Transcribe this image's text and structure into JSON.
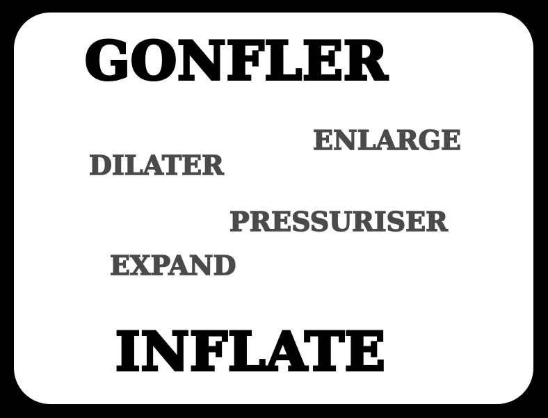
{
  "card": {
    "title_top": "GONFLER",
    "title_bottom": "INFLATE",
    "words": {
      "enlarge": "ENLARGE",
      "dilater": "DILATER",
      "pressuriser": "PRESSURISER",
      "expand": "EXPAND"
    }
  },
  "colors": {
    "background": "#000000",
    "card": "#ffffff",
    "title_text": "#000000",
    "word_text": "#4a4a4a"
  }
}
